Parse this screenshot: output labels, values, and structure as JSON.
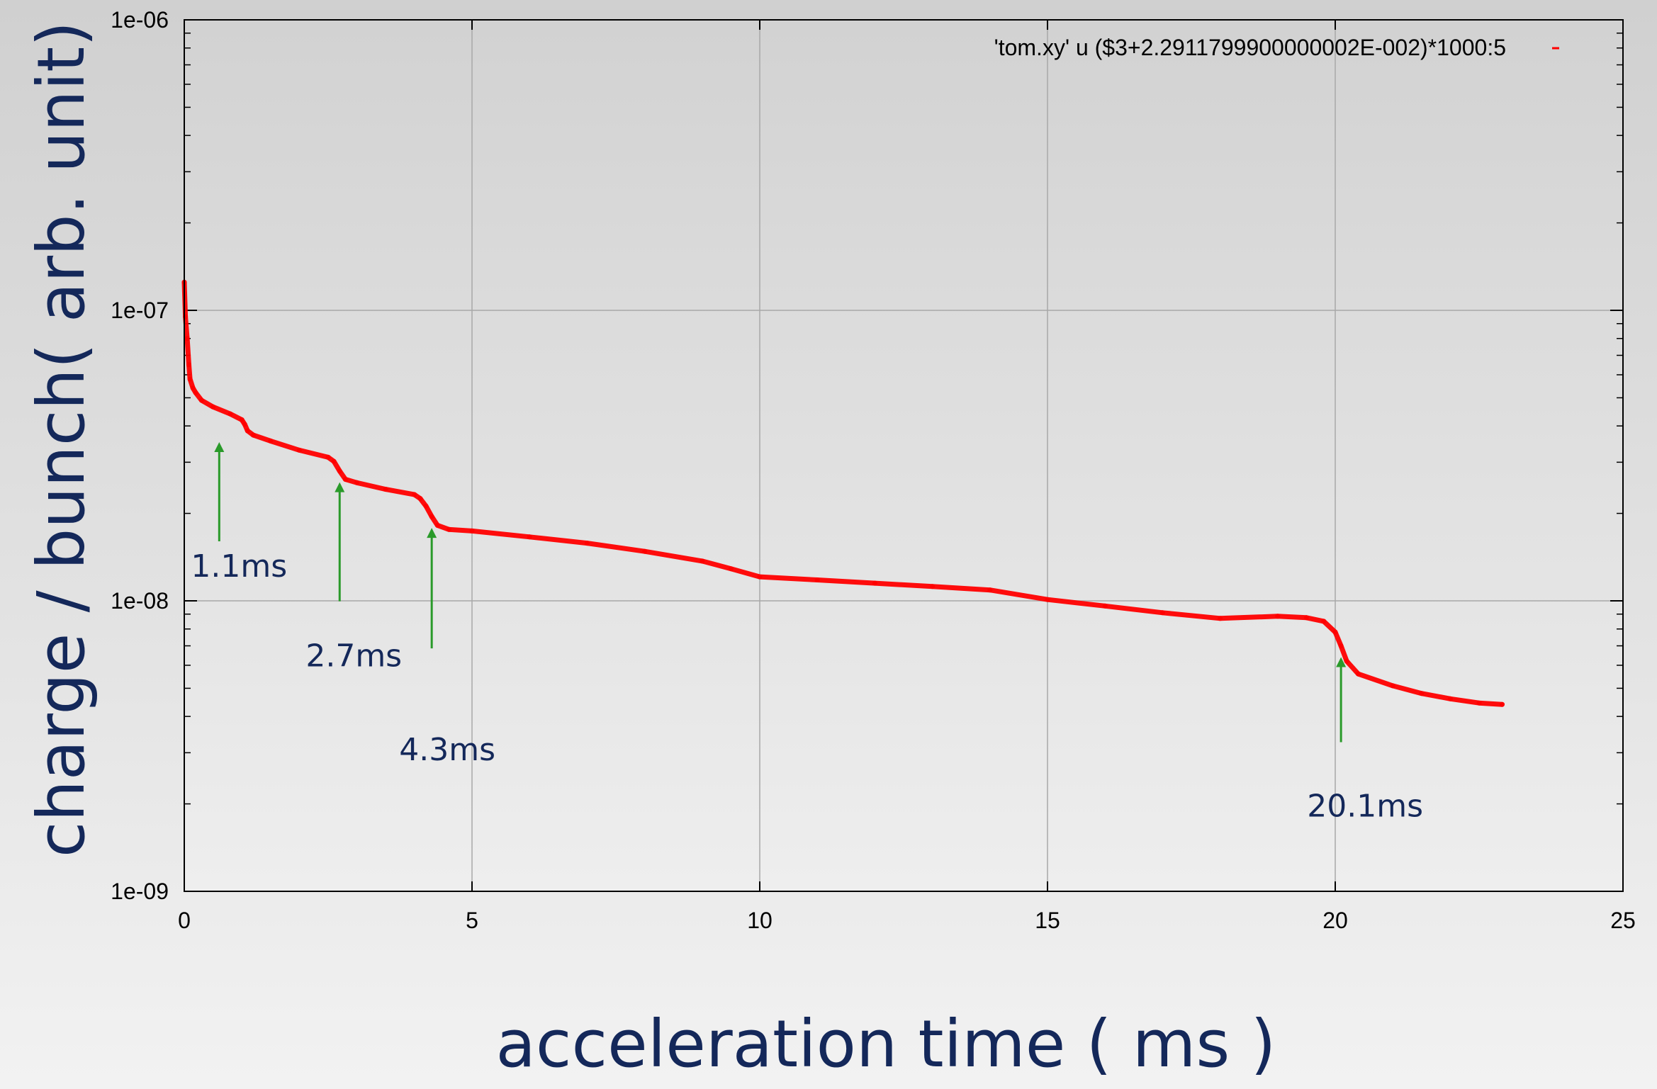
{
  "chart_data": {
    "type": "scatter",
    "xlabel": "acceleration time ( ms )",
    "ylabel": "charge / bunch( arb. unit)",
    "xlim": [
      0,
      25
    ],
    "ylim": [
      1e-09,
      1e-06
    ],
    "y_scale": "log",
    "grid": true,
    "legend_position": "top-right",
    "x_ticks": [
      "0",
      "5",
      "10",
      "15",
      "20",
      "25"
    ],
    "y_ticks": [
      "1e-09",
      "1e-08",
      "1e-07",
      "1e-06"
    ],
    "series": [
      {
        "name": "'tom.xy' u ($3+2.2911799900000002E-002)*1000:5",
        "color": "#ff0000",
        "x": [
          0.0,
          0.02,
          0.05,
          0.08,
          0.1,
          0.15,
          0.2,
          0.3,
          0.5,
          0.8,
          1.0,
          1.05,
          1.1,
          1.2,
          1.5,
          2.0,
          2.5,
          2.6,
          2.7,
          2.8,
          3.0,
          3.5,
          4.0,
          4.1,
          4.2,
          4.3,
          4.4,
          4.6,
          5.0,
          6.0,
          7.0,
          8.0,
          9.0,
          9.5,
          10.0,
          11.0,
          12.0,
          13.0,
          14.0,
          15.0,
          16.0,
          17.0,
          18.0,
          19.0,
          19.5,
          19.8,
          20.0,
          20.1,
          20.2,
          20.4,
          21.0,
          21.5,
          22.0,
          22.5,
          22.9
        ],
        "y": [
          1.25e-07,
          9.5e-08,
          8e-08,
          6.5e-08,
          5.8e-08,
          5.4e-08,
          5.2e-08,
          4.9e-08,
          4.65e-08,
          4.4e-08,
          4.2e-08,
          4.05e-08,
          3.85e-08,
          3.72e-08,
          3.55e-08,
          3.3e-08,
          3.12e-08,
          3.02e-08,
          2.8e-08,
          2.62e-08,
          2.55e-08,
          2.42e-08,
          2.32e-08,
          2.25e-08,
          2.12e-08,
          1.95e-08,
          1.82e-08,
          1.76e-08,
          1.74e-08,
          1.66e-08,
          1.58e-08,
          1.48e-08,
          1.37e-08,
          1.29e-08,
          1.21e-08,
          1.18e-08,
          1.15e-08,
          1.12e-08,
          1.09e-08,
          1.01e-08,
          9.6e-09,
          9.1e-09,
          8.7e-09,
          8.85e-09,
          8.75e-09,
          8.5e-09,
          7.8e-09,
          7e-09,
          6.2e-09,
          5.6e-09,
          5.1e-09,
          4.8e-09,
          4.6e-09,
          4.45e-09,
          4.4e-09
        ]
      }
    ],
    "annotations": [
      {
        "text": "1.1ms",
        "x": 1.1,
        "color": "#2a9a2a"
      },
      {
        "text": "2.7ms",
        "x": 2.7,
        "color": "#2a9a2a"
      },
      {
        "text": "4.3ms",
        "x": 4.3,
        "color": "#2a9a2a"
      },
      {
        "text": "20.1ms",
        "x": 20.1,
        "color": "#2a9a2a"
      }
    ]
  }
}
